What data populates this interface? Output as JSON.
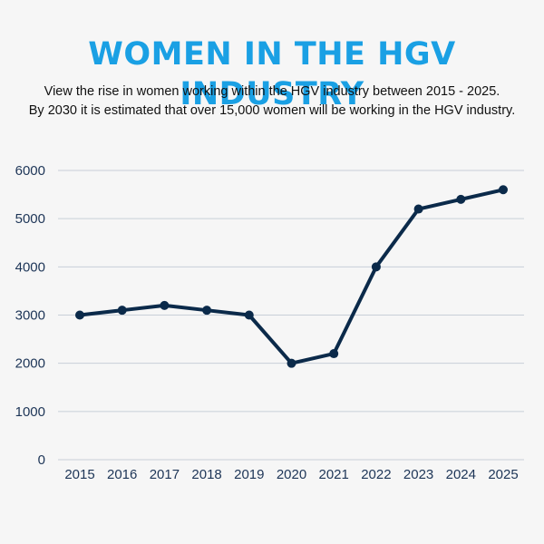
{
  "title": "WOMEN IN THE HGV INDUSTRY",
  "subtitle_line1": "View the rise in women working within the HGV industry between 2015 - 2025.",
  "subtitle_line2": "By 2030 it is estimated that over 15,000 women will be working in the HGV industry.",
  "colors": {
    "title": "#1aa0e4",
    "line": "#0b2a4a",
    "grid": "#c8cfd8",
    "tick": "#1d3557",
    "background": "#f6f6f6"
  },
  "chart_data": {
    "type": "line",
    "title": "WOMEN IN THE HGV INDUSTRY",
    "xlabel": "",
    "ylabel": "",
    "x": [
      "2015",
      "2016",
      "2017",
      "2018",
      "2019",
      "2020",
      "2021",
      "2022",
      "2023",
      "2024",
      "2025"
    ],
    "series": [
      {
        "values": [
          3000,
          3100,
          3200,
          3100,
          3000,
          2000,
          2200,
          4000,
          5200,
          5400,
          5600
        ]
      }
    ],
    "ylim": [
      0,
      6000
    ],
    "yticks": [
      "0",
      "1000",
      "2000",
      "3000",
      "4000",
      "5000",
      "6000"
    ],
    "grid": true,
    "legend": "none"
  }
}
